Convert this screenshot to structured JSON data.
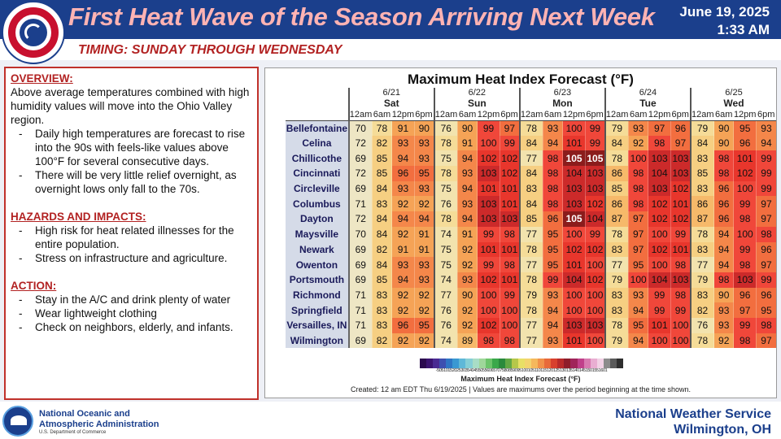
{
  "header": {
    "title": "First Heat Wave of the Season Arriving Next Week",
    "date": "June 19, 2025",
    "time": "1:33 AM",
    "subtitle": "TIMING: SUNDAY THROUGH WEDNESDAY",
    "seal_text": "NATIONAL WEATHER SERVICE"
  },
  "left_panel": {
    "overview_heading": "OVERVIEW:",
    "overview_text": "Above average temperatures combined with high humidity values will move into the Ohio Valley region.",
    "overview_bullets": [
      "Daily high temperatures are forecast to rise into the 90s with feels-like values above 100°F for several consecutive days.",
      "There will be very little relief overnight, as overnight lows only fall to the 70s."
    ],
    "hazards_heading": "HAZARDS AND IMPACTS:",
    "hazards_bullets": [
      "High risk for heat related illnesses for the entire population.",
      "Stress on infrastructure and agriculture."
    ],
    "action_heading": "ACTION:",
    "action_bullets": [
      "Stay in the A/C and drink plenty of water",
      "Wear lightweight clothing",
      "Check on neighbors, elderly, and infants."
    ]
  },
  "chart_data": {
    "type": "table",
    "title": "Maximum Heat Index Forecast (°F)",
    "days": [
      {
        "date": "6/21",
        "name": "Sat"
      },
      {
        "date": "6/22",
        "name": "Sun"
      },
      {
        "date": "6/23",
        "name": "Mon"
      },
      {
        "date": "6/24",
        "name": "Tue"
      },
      {
        "date": "6/25",
        "name": "Wed"
      }
    ],
    "hours": [
      "12am",
      "6am",
      "12pm",
      "6pm"
    ],
    "rows": [
      {
        "location": "Bellefontaine",
        "values": [
          70,
          78,
          91,
          90,
          76,
          90,
          99,
          97,
          78,
          93,
          100,
          99,
          79,
          93,
          97,
          96,
          79,
          90,
          95,
          93
        ]
      },
      {
        "location": "Celina",
        "values": [
          72,
          82,
          93,
          93,
          78,
          91,
          100,
          99,
          84,
          94,
          101,
          99,
          84,
          92,
          98,
          97,
          84,
          90,
          96,
          94
        ]
      },
      {
        "location": "Chillicothe",
        "values": [
          69,
          85,
          94,
          93,
          75,
          94,
          102,
          102,
          77,
          98,
          105,
          105,
          78,
          100,
          103,
          103,
          83,
          98,
          101,
          99
        ]
      },
      {
        "location": "Cincinnati",
        "values": [
          72,
          85,
          96,
          95,
          78,
          93,
          103,
          102,
          84,
          98,
          104,
          103,
          86,
          98,
          104,
          103,
          85,
          98,
          102,
          99
        ]
      },
      {
        "location": "Circleville",
        "values": [
          69,
          84,
          93,
          93,
          75,
          94,
          101,
          101,
          83,
          98,
          103,
          103,
          85,
          98,
          103,
          102,
          83,
          96,
          100,
          99
        ]
      },
      {
        "location": "Columbus",
        "values": [
          71,
          83,
          92,
          92,
          76,
          93,
          103,
          101,
          84,
          98,
          103,
          102,
          86,
          98,
          102,
          101,
          86,
          96,
          99,
          97
        ]
      },
      {
        "location": "Dayton",
        "values": [
          72,
          84,
          94,
          94,
          78,
          94,
          103,
          103,
          85,
          96,
          105,
          104,
          87,
          97,
          102,
          102,
          87,
          96,
          98,
          97
        ]
      },
      {
        "location": "Maysville",
        "values": [
          70,
          84,
          92,
          91,
          74,
          91,
          99,
          98,
          77,
          95,
          100,
          99,
          78,
          97,
          100,
          99,
          78,
          94,
          100,
          98
        ]
      },
      {
        "location": "Newark",
        "values": [
          69,
          82,
          91,
          91,
          75,
          92,
          101,
          101,
          78,
          95,
          102,
          102,
          83,
          97,
          102,
          101,
          83,
          94,
          99,
          96
        ]
      },
      {
        "location": "Owenton",
        "values": [
          69,
          84,
          93,
          93,
          75,
          92,
          99,
          98,
          77,
          95,
          101,
          100,
          77,
          95,
          100,
          98,
          77,
          94,
          98,
          97
        ]
      },
      {
        "location": "Portsmouth",
        "values": [
          69,
          85,
          94,
          93,
          74,
          93,
          102,
          101,
          78,
          99,
          104,
          102,
          79,
          100,
          104,
          103,
          79,
          98,
          103,
          99
        ]
      },
      {
        "location": "Richmond",
        "values": [
          71,
          83,
          92,
          92,
          77,
          90,
          100,
          99,
          79,
          93,
          100,
          100,
          83,
          93,
          99,
          98,
          83,
          90,
          96,
          96
        ]
      },
      {
        "location": "Springfield",
        "values": [
          71,
          83,
          92,
          92,
          76,
          92,
          100,
          100,
          78,
          94,
          100,
          100,
          83,
          94,
          99,
          99,
          82,
          93,
          97,
          95
        ]
      },
      {
        "location": "Versailles, IN",
        "values": [
          71,
          83,
          96,
          95,
          76,
          92,
          102,
          100,
          77,
          94,
          103,
          103,
          78,
          95,
          101,
          100,
          76,
          93,
          99,
          98
        ]
      },
      {
        "location": "Wilmington",
        "values": [
          69,
          82,
          92,
          92,
          74,
          89,
          98,
          98,
          77,
          93,
          101,
          100,
          79,
          94,
          100,
          100,
          78,
          92,
          98,
          97
        ]
      }
    ],
    "legend_title": "Maximum Heat Index Forecast (°F)",
    "legend_ticks": "-5051015202530354045505560657075808590951001051101151201251301351401451501551601",
    "note": "Created: 12 am EDT Thu 6/19/2025 | Values are maximums over the period beginning at the time shown."
  },
  "footer": {
    "noaa_line1": "National Oceanic and",
    "noaa_line2": "Atmospheric Administration",
    "noaa_dept": "U.S. Department of Commerce",
    "nws_line1": "National Weather Service",
    "nws_line2": "Wilmington, OH"
  }
}
